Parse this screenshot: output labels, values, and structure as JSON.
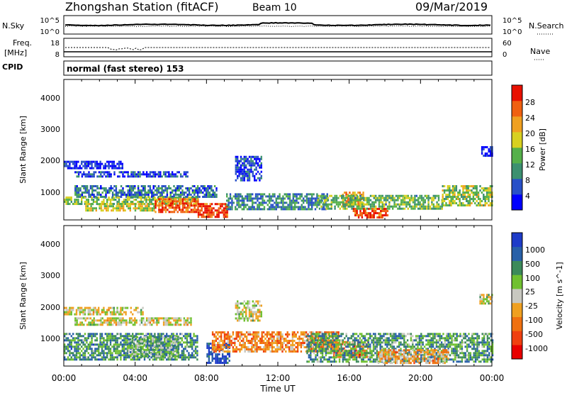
{
  "header": {
    "station": "Zhongshan Station (fitACF)",
    "beam": "Beam 10",
    "date": "09/Mar/2019"
  },
  "side_labels": {
    "nsky": "N.Sky",
    "nsearch": "N.Search",
    "freq": "Freq.",
    "freq_unit": "[MHz]",
    "nave": "Nave",
    "cpid": "CPID"
  },
  "noise_panel": {
    "left_ticks": [
      "10^5",
      "10^0"
    ],
    "right_ticks": [
      "10^5",
      "10^0"
    ]
  },
  "freq_panel": {
    "left_ticks": [
      "18",
      "8"
    ],
    "right_ticks": [
      "60",
      "0"
    ]
  },
  "cpid_text": "normal (fast stereo) 153",
  "xaxis": {
    "label": "Time UT",
    "ticks": [
      "00:00",
      "04:00",
      "08:00",
      "12:00",
      "16:00",
      "20:00",
      "00:00"
    ]
  },
  "panels": {
    "power": {
      "ylabel": "Slant Range [km]",
      "yticks": [
        "1000",
        "2000",
        "3000",
        "4000"
      ],
      "colorbar_label": "Power [dB]",
      "colorbar_ticks": [
        "4",
        "8",
        "12",
        "16",
        "20",
        "24",
        "28"
      ]
    },
    "velocity": {
      "ylabel": "Slant Range [km]",
      "yticks": [
        "1000",
        "2000",
        "3000",
        "4000"
      ],
      "colorbar_label": "Velocity [m s^-1]",
      "colorbar_ticks": [
        "1000",
        "500",
        "100",
        "25",
        "-25",
        "-100",
        "-500",
        "-1000"
      ]
    }
  },
  "chart_data": [
    {
      "type": "heatmap",
      "name": "power",
      "x_range_hours": [
        0,
        24
      ],
      "y_range_km": [
        180,
        4500
      ],
      "colorbar": {
        "values": [
          4,
          8,
          12,
          16,
          20,
          24,
          28
        ],
        "colors": [
          "#0000ff",
          "#2850c8",
          "#3c9070",
          "#55b04a",
          "#d8d020",
          "#f0a020",
          "#f06010",
          "#e81000"
        ]
      },
      "regions": [
        {
          "t0": 0.0,
          "t1": 3.3,
          "r0": 1750,
          "r1": 2000,
          "level": 0.08
        },
        {
          "t0": 0.6,
          "t1": 6.9,
          "r0": 1500,
          "r1": 1680,
          "level": 0.15
        },
        {
          "t0": 0.6,
          "t1": 8.6,
          "r0": 900,
          "r1": 1250,
          "level": 0.25
        },
        {
          "t0": 0.0,
          "t1": 7.5,
          "r0": 650,
          "r1": 900,
          "level": 0.45
        },
        {
          "t0": 1.2,
          "t1": 5.1,
          "r0": 450,
          "r1": 700,
          "level": 0.55
        },
        {
          "t0": 5.1,
          "t1": 7.5,
          "r0": 450,
          "r1": 850,
          "level": 0.82
        },
        {
          "t0": 7.5,
          "t1": 9.2,
          "r0": 300,
          "r1": 700,
          "level": 0.9
        },
        {
          "t0": 9.6,
          "t1": 11.1,
          "r0": 1400,
          "r1": 2150,
          "level": 0.18
        },
        {
          "t0": 9.1,
          "t1": 14.8,
          "r0": 500,
          "r1": 1000,
          "level": 0.3
        },
        {
          "t0": 15.6,
          "t1": 16.8,
          "r0": 650,
          "r1": 1050,
          "level": 0.72
        },
        {
          "t0": 16.2,
          "t1": 18.2,
          "r0": 250,
          "r1": 550,
          "level": 0.9
        },
        {
          "t0": 14.2,
          "t1": 21.2,
          "r0": 550,
          "r1": 950,
          "level": 0.42
        },
        {
          "t0": 21.2,
          "t1": 24.0,
          "r0": 600,
          "r1": 1250,
          "level": 0.48
        },
        {
          "t0": 23.4,
          "t1": 24.0,
          "r0": 2150,
          "r1": 2450,
          "level": 0.1
        }
      ]
    },
    {
      "type": "heatmap",
      "name": "velocity",
      "x_range_hours": [
        0,
        24
      ],
      "y_range_km": [
        180,
        4500
      ],
      "colorbar": {
        "values": [
          1000,
          500,
          100,
          25,
          -25,
          -100,
          -500,
          -1000
        ],
        "colors": [
          "#1e3cc8",
          "#2860a8",
          "#3c8a5a",
          "#70c030",
          "#c8c8c0",
          "#f0a020",
          "#f07010",
          "#f04010",
          "#e80000"
        ]
      },
      "regions": [
        {
          "t0": 0.0,
          "t1": 4.4,
          "r0": 1750,
          "r1": 2000,
          "level": 0.5
        },
        {
          "t0": 0.6,
          "t1": 7.1,
          "r0": 1450,
          "r1": 1680,
          "level": 0.5
        },
        {
          "t0": 9.6,
          "t1": 11.1,
          "r0": 1600,
          "r1": 2200,
          "level": 0.5
        },
        {
          "t0": 0.0,
          "t1": 7.5,
          "r0": 400,
          "r1": 1200,
          "level": 0.28
        },
        {
          "t0": 3.6,
          "t1": 6.4,
          "r0": 450,
          "r1": 1100,
          "level": 0.35
        },
        {
          "t0": 8.0,
          "t1": 9.3,
          "r0": 300,
          "r1": 900,
          "level": 0.08
        },
        {
          "t0": 8.3,
          "t1": 15.4,
          "r0": 600,
          "r1": 1250,
          "level": 0.68
        },
        {
          "t0": 15.1,
          "t1": 17.1,
          "r0": 450,
          "r1": 950,
          "level": 0.75
        },
        {
          "t0": 13.6,
          "t1": 24.0,
          "r0": 300,
          "r1": 1200,
          "level": 0.3
        },
        {
          "t0": 17.6,
          "t1": 21.6,
          "r0": 250,
          "r1": 700,
          "level": 0.62
        },
        {
          "t0": 23.3,
          "t1": 24.0,
          "r0": 2100,
          "r1": 2400,
          "level": 0.45
        }
      ]
    }
  ]
}
